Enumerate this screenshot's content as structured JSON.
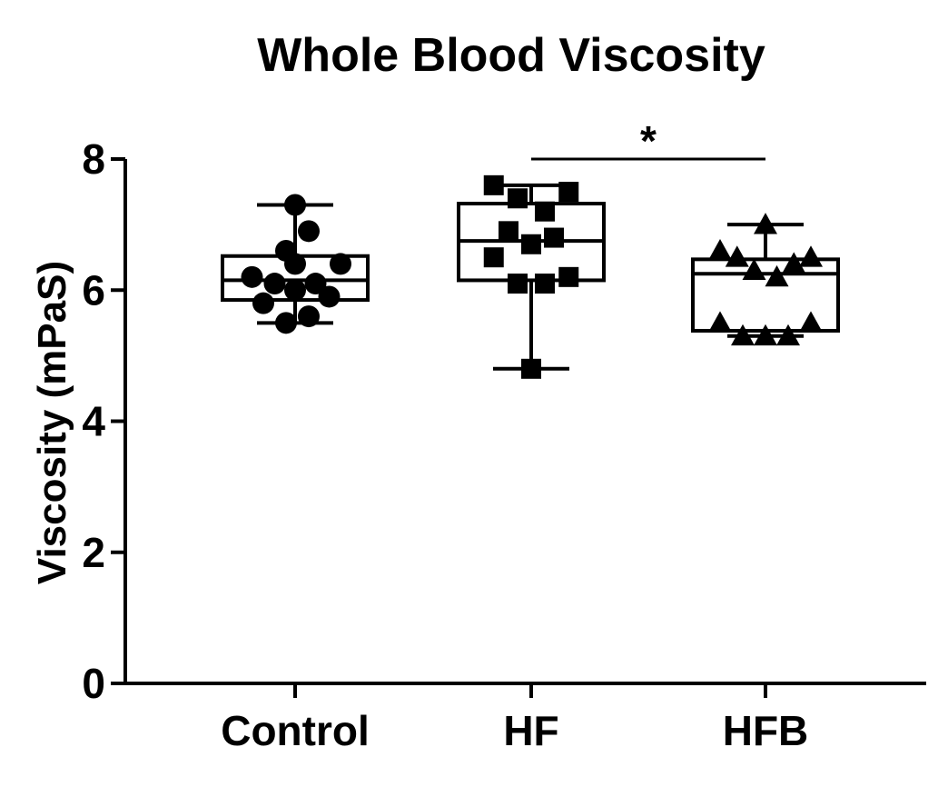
{
  "chart_data": {
    "type": "box",
    "title": "Whole Blood Viscosity",
    "xlabel": "",
    "ylabel": "Viscosity (mPaS)",
    "ylim": [
      0,
      8
    ],
    "yticks": [
      "0",
      "2",
      "4",
      "6",
      "8"
    ],
    "grid": false,
    "legend": "none",
    "categories": [
      "Control",
      "HF",
      "HFB"
    ],
    "groups": [
      {
        "category": "Control",
        "marker": "circle",
        "box": {
          "min": 5.5,
          "q1": 5.85,
          "median": 6.15,
          "q3": 6.52,
          "max": 7.3
        },
        "points": [
          {
            "x": 0.0,
            "y": 7.3
          },
          {
            "x": 0.12,
            "y": 6.9
          },
          {
            "x": -0.08,
            "y": 6.6
          },
          {
            "x": 0.0,
            "y": 6.4
          },
          {
            "x": 0.4,
            "y": 6.4
          },
          {
            "x": -0.38,
            "y": 6.2
          },
          {
            "x": -0.18,
            "y": 6.1
          },
          {
            "x": 0.18,
            "y": 6.1
          },
          {
            "x": 0.0,
            "y": 6.0
          },
          {
            "x": 0.3,
            "y": 5.9
          },
          {
            "x": -0.28,
            "y": 5.8
          },
          {
            "x": 0.12,
            "y": 5.6
          },
          {
            "x": -0.08,
            "y": 5.5
          }
        ]
      },
      {
        "category": "HF",
        "marker": "square",
        "box": {
          "min": 4.8,
          "q1": 6.15,
          "median": 6.75,
          "q3": 7.32,
          "max": 7.6
        },
        "points": [
          {
            "x": -0.33,
            "y": 7.6
          },
          {
            "x": 0.33,
            "y": 7.5
          },
          {
            "x": -0.12,
            "y": 7.4
          },
          {
            "x": 0.12,
            "y": 7.2
          },
          {
            "x": -0.2,
            "y": 6.9
          },
          {
            "x": 0.2,
            "y": 6.8
          },
          {
            "x": 0.0,
            "y": 6.7
          },
          {
            "x": -0.33,
            "y": 6.5
          },
          {
            "x": 0.33,
            "y": 6.2
          },
          {
            "x": -0.12,
            "y": 6.1
          },
          {
            "x": 0.12,
            "y": 6.1
          },
          {
            "x": 0.0,
            "y": 4.8
          }
        ]
      },
      {
        "category": "HFB",
        "marker": "triangle",
        "box": {
          "min": 5.3,
          "q1": 5.38,
          "median": 6.25,
          "q3": 6.47,
          "max": 7.0
        },
        "points": [
          {
            "x": 0.0,
            "y": 7.0
          },
          {
            "x": -0.4,
            "y": 6.6
          },
          {
            "x": -0.25,
            "y": 6.5
          },
          {
            "x": 0.4,
            "y": 6.5
          },
          {
            "x": 0.25,
            "y": 6.4
          },
          {
            "x": -0.1,
            "y": 6.3
          },
          {
            "x": 0.1,
            "y": 6.2
          },
          {
            "x": -0.4,
            "y": 5.5
          },
          {
            "x": 0.4,
            "y": 5.5
          },
          {
            "x": -0.2,
            "y": 5.3
          },
          {
            "x": 0.0,
            "y": 5.3
          },
          {
            "x": 0.2,
            "y": 5.3
          }
        ]
      }
    ],
    "annotations": [
      {
        "type": "significance",
        "from": "HF",
        "to": "HFB",
        "y": 8.0,
        "label": "*"
      }
    ]
  }
}
